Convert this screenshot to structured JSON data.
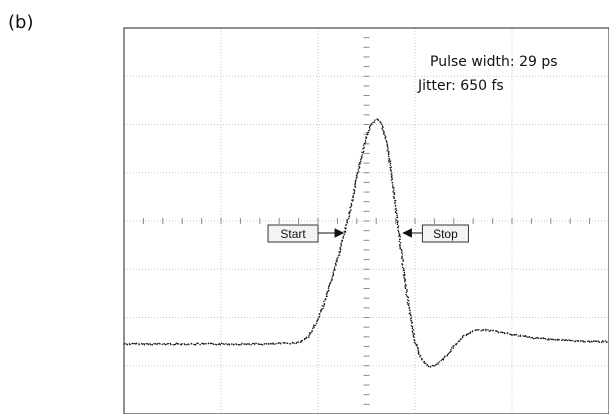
{
  "panel_label": "(b)",
  "chart_data": {
    "type": "scatter",
    "title": "",
    "xlabel": "",
    "ylabel": "",
    "grid": true,
    "grid_divisions": {
      "x": 5,
      "y": 8
    },
    "xlim": [
      0,
      5
    ],
    "ylim": [
      0,
      8
    ],
    "annotations": {
      "pulse_width": "Pulse width: 29 ps",
      "jitter": "Jitter: 650 fs"
    },
    "markers": {
      "start": {
        "label": "Start",
        "x": 2.32
      },
      "stop": {
        "label": "Stop",
        "x": 2.86
      }
    },
    "trace": {
      "x": [
        0.0,
        0.5,
        1.0,
        1.5,
        1.8,
        1.9,
        2.0,
        2.1,
        2.2,
        2.3,
        2.35,
        2.4,
        2.45,
        2.5,
        2.55,
        2.6,
        2.65,
        2.7,
        2.75,
        2.8,
        2.85,
        2.9,
        2.95,
        3.0,
        3.05,
        3.1,
        3.15,
        3.2,
        3.3,
        3.4,
        3.5,
        3.6,
        3.7,
        3.8,
        4.0,
        4.2,
        4.4,
        4.6,
        4.8,
        5.0
      ],
      "y": [
        1.45,
        1.45,
        1.45,
        1.45,
        1.48,
        1.6,
        1.95,
        2.5,
        3.2,
        3.95,
        4.4,
        4.9,
        5.35,
        5.75,
        6.0,
        6.1,
        6.05,
        5.7,
        5.1,
        4.3,
        3.5,
        2.7,
        2.05,
        1.5,
        1.2,
        1.05,
        0.98,
        1.0,
        1.15,
        1.4,
        1.6,
        1.72,
        1.75,
        1.72,
        1.65,
        1.58,
        1.55,
        1.52,
        1.5,
        1.5
      ]
    }
  }
}
